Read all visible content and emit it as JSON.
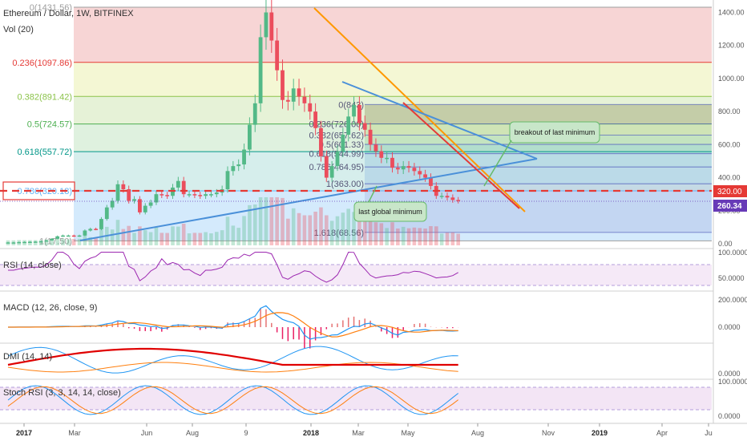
{
  "header": {
    "symbol_line": "Ethereum / Dollar, 1W, BITFINEX",
    "volume_label": "Vol (20)"
  },
  "panes": {
    "rsi": "RSI (14, close)",
    "macd": "MACD (12, 26, close, 9)",
    "dmi": "DMI (14, 14)",
    "stoch": "Stoch RSI (3, 3, 14, 14, close)"
  },
  "price_axis": [
    "1400.00",
    "1200.00",
    "1000.00",
    "800.00",
    "600.00",
    "400.00",
    "200.00",
    "0.00"
  ],
  "rsi_axis": [
    "100.0000",
    "50.0000"
  ],
  "macd_axis": [
    "200.0000",
    "0.0000"
  ],
  "dmi_axis": [
    "0.0000"
  ],
  "stoch_axis": [
    "100.0000",
    "0.0000"
  ],
  "price_badges": {
    "level": "320.00",
    "last": "260.34",
    "level_color": "#e53935",
    "last_color": "#673ab7"
  },
  "time_axis": [
    "2017",
    "Mar",
    "Jun",
    "Aug",
    "9",
    "2018",
    "Mar",
    "May",
    "Aug",
    "Nov",
    "2019",
    "Apr",
    "Ju"
  ],
  "fib_main": [
    {
      "label": "0(1431.56)",
      "color": "#9e9e9e"
    },
    {
      "label": "0.236(1097.86)",
      "color": "#e53935"
    },
    {
      "label": "0.382(891.42)",
      "color": "#8bc34a"
    },
    {
      "label": "0.5(724.57)",
      "color": "#4caf50"
    },
    {
      "label": "0.618(557.72)",
      "color": "#009688"
    },
    {
      "label": "0.786(320.18)",
      "color": "#64b5f6"
    },
    {
      "label": "1(17.50)",
      "color": "#9e9e9e"
    }
  ],
  "fib_second": [
    {
      "label": "0(843)"
    },
    {
      "label": "0.236(726.00)"
    },
    {
      "label": "0.382(657.62)"
    },
    {
      "label": "0.5(601.33)"
    },
    {
      "label": "0.618(544.99)"
    },
    {
      "label": "0.786(464.95)"
    },
    {
      "label": "1(363.00)"
    },
    {
      "label": "1.618(68.56)"
    }
  ],
  "annotations": {
    "breakout": "breakout of last minimum",
    "global_min": "last global minimum"
  },
  "colors": {
    "bull": "#53b987",
    "bear": "#eb4d5c",
    "trend_orange": "#ff9800",
    "trend_blue": "#4a90d9",
    "trend_red": "#e53935",
    "rsi": "#9c27b0",
    "macd": "#2196f3",
    "signal": "#ff7f0e",
    "dmi_plus": "#2196f3",
    "dmi_minus": "#ff7f0e",
    "adx": "#e00000",
    "stoch_k": "#2196f3",
    "stoch_d": "#ff7f0e"
  },
  "chart_data": {
    "type": "candlestick",
    "interval": "1W",
    "x_start": "2016-12-26",
    "ylim": [
      0,
      1431.56
    ],
    "weekly_closes": [
      8,
      8,
      10,
      11,
      12,
      13,
      15,
      20,
      30,
      45,
      50,
      50,
      45,
      50,
      80,
      90,
      88,
      150,
      220,
      260,
      360,
      330,
      260,
      270,
      190,
      230,
      250,
      300,
      295,
      290,
      340,
      380,
      300,
      300,
      295,
      290,
      300,
      300,
      310,
      330,
      440,
      470,
      480,
      570,
      720,
      850,
      1250,
      1400,
      1230,
      1050,
      870,
      860,
      940,
      890,
      850,
      800,
      700,
      530,
      400,
      470,
      560,
      660,
      770,
      840,
      730,
      690,
      600,
      560,
      520,
      520,
      460,
      450,
      470,
      460,
      440,
      420,
      400,
      350,
      290,
      290,
      280,
      265,
      260.34
    ],
    "fib_main_levels": [
      1431.56,
      1097.86,
      891.42,
      724.57,
      557.72,
      320.18,
      17.5
    ],
    "fib_second_levels": [
      843,
      726.0,
      657.62,
      601.33,
      544.99,
      464.95,
      363.0,
      68.56
    ],
    "horizontal_level": 320.0,
    "last_price": 260.34
  }
}
